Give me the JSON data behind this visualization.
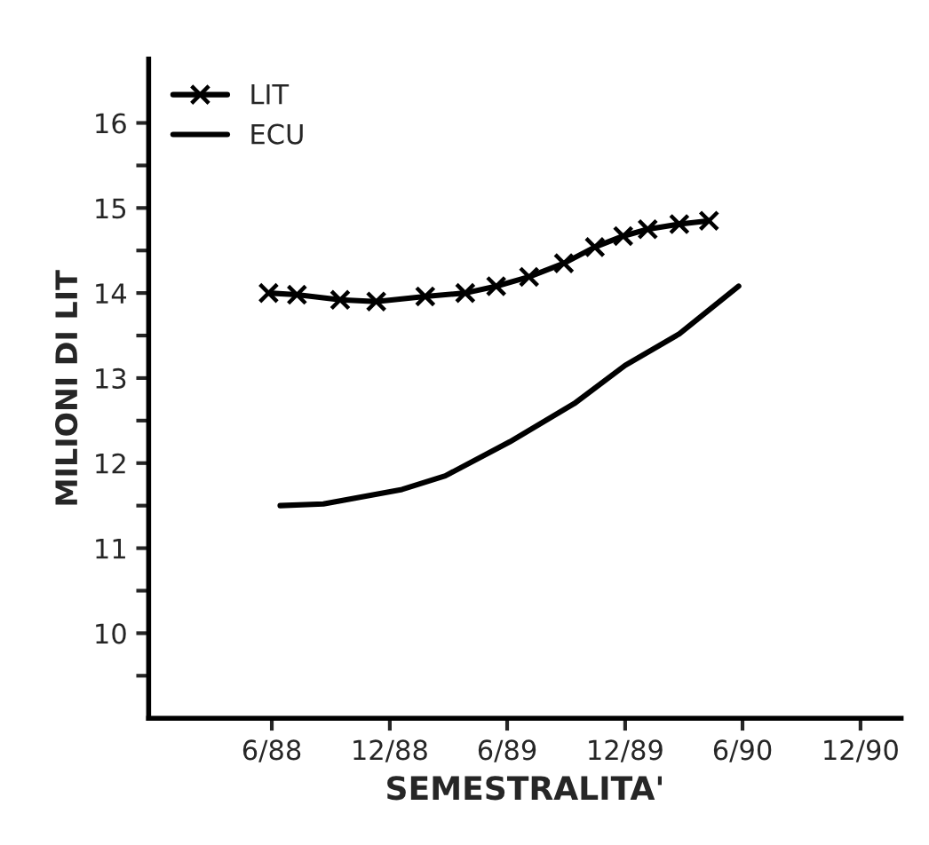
{
  "chart_data": {
    "type": "line",
    "xlabel": "SEMESTRALITA'",
    "ylabel": "MILIONI DI LIT",
    "xlim": [
      "1987-11-23",
      "1991-02-02"
    ],
    "ylim": [
      9,
      16.75
    ],
    "xticks": [
      {
        "value": "1988-06",
        "label": "6/88"
      },
      {
        "value": "1988-12",
        "label": "12/88"
      },
      {
        "value": "1989-06",
        "label": "6/89"
      },
      {
        "value": "1989-12",
        "label": "12/89"
      },
      {
        "value": "1990-06",
        "label": "6/90"
      },
      {
        "value": "1990-12",
        "label": "12/90"
      }
    ],
    "yticks": [
      {
        "value": 9.5,
        "label": null
      },
      10,
      {
        "value": 10.5,
        "label": null
      },
      11,
      {
        "value": 11.5,
        "label": null
      },
      12,
      {
        "value": 12.5,
        "label": null
      },
      13,
      {
        "value": 13.5,
        "label": null
      },
      14,
      {
        "value": 14.5,
        "label": null
      },
      15,
      {
        "value": 15.5,
        "label": null
      },
      16
    ],
    "grid": false,
    "legend": "top left",
    "line_style": "solid",
    "series": [
      {
        "name": "LIT",
        "color": "#000000",
        "marker": "cross",
        "x": [
          "1988-05-27",
          "1988-07-10",
          "1988-09-15",
          "1988-11-10",
          "1989-01-25",
          "1989-03-28",
          "1989-05-15",
          "1989-07-05",
          "1989-08-28",
          "1989-10-15",
          "1989-11-28",
          "1990-01-05",
          "1990-02-23",
          "1990-04-10"
        ],
        "values": [
          14.0,
          13.98,
          13.92,
          13.9,
          13.96,
          14.0,
          14.08,
          14.19,
          14.35,
          14.54,
          14.67,
          14.75,
          14.81,
          14.85
        ]
      },
      {
        "name": "ECU",
        "color": "#000000",
        "marker": "none",
        "x": [
          "1988-06-14",
          "1988-08-20",
          "1988-12-20",
          "1989-02-25",
          "1989-06-05",
          "1989-09-13",
          "1989-12-01",
          "1990-02-23",
          "1990-05-26"
        ],
        "values": [
          11.5,
          11.52,
          11.69,
          11.85,
          12.25,
          12.7,
          13.15,
          13.52,
          14.08
        ]
      }
    ]
  }
}
